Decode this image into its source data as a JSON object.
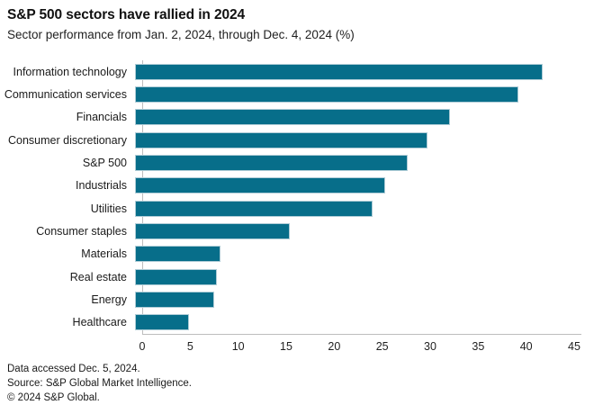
{
  "header": {
    "title": "S&P 500 sectors have rallied in 2024",
    "subtitle": "Sector performance from Jan. 2, 2024, through Dec. 4, 2024 (%)"
  },
  "chart_data": {
    "type": "bar",
    "orientation": "horizontal",
    "title": "S&P 500 sectors have rallied in 2024",
    "subtitle": "Sector performance from Jan. 2, 2024, through Dec. 4, 2024 (%)",
    "categories": [
      "Information technology",
      "Communication services",
      "Financials",
      "Consumer discretionary",
      "S&P 500",
      "Industrials",
      "Utilities",
      "Consumer staples",
      "Materials",
      "Real estate",
      "Energy",
      "Healthcare"
    ],
    "values": [
      42.5,
      39.9,
      32.8,
      30.5,
      28.4,
      26.1,
      24.7,
      16.1,
      8.9,
      8.5,
      8.2,
      5.6
    ],
    "unit": "%",
    "xlabel": "",
    "ylabel": "",
    "xlim": [
      0,
      45
    ],
    "xticks": [
      0,
      5,
      10,
      15,
      20,
      25,
      30,
      35,
      40,
      45
    ],
    "grid": false,
    "legend": "none",
    "bar_color": "#076e8a",
    "bar_edge_color": "#b0cdd7",
    "axis_color": "#bdbdbd"
  },
  "footer": {
    "lines": [
      "Data accessed Dec. 5, 2024.",
      "Source: S&P Global Market Intelligence.",
      "© 2024 S&P Global."
    ]
  }
}
